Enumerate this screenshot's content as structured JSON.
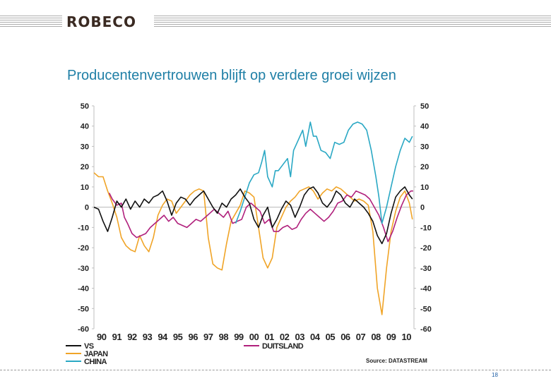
{
  "header": {
    "logo_text": "ROBECO"
  },
  "slide": {
    "title": "Producentenvertrouwen blijft op verdere groei wijzen",
    "page_number": "18"
  },
  "colors": {
    "vs": "#111111",
    "japan": "#f0a427",
    "china": "#2aa8c4",
    "duitsland": "#b0207c",
    "title": "#1f7fa6"
  },
  "chart_data": {
    "type": "line",
    "title": "",
    "ylim": [
      -60,
      50
    ],
    "yticks": [
      "50",
      "40",
      "30",
      "20",
      "10",
      "0",
      "-10",
      "-20",
      "-30",
      "-40",
      "-50",
      "-60"
    ],
    "x_range": [
      1990,
      2011
    ],
    "xtick_labels": [
      "90",
      "91",
      "92",
      "93",
      "94",
      "95",
      "96",
      "97",
      "98",
      "99",
      "00",
      "01",
      "02",
      "03",
      "04",
      "05",
      "06",
      "07",
      "08",
      "09",
      "10"
    ],
    "source": "Source: DATASTREAM",
    "legend": [
      "VS",
      "JAPAN",
      "CHINA",
      "DUITSLAND"
    ],
    "series": [
      {
        "name": "VS",
        "key": "vs",
        "x": [
          1990.0,
          1990.3,
          1990.6,
          1990.9,
          1991.2,
          1991.5,
          1991.8,
          1992.1,
          1992.4,
          1992.7,
          1993.0,
          1993.3,
          1993.6,
          1993.9,
          1994.2,
          1994.5,
          1994.8,
          1995.1,
          1995.4,
          1995.7,
          1996.0,
          1996.3,
          1996.6,
          1996.9,
          1997.2,
          1997.5,
          1997.8,
          1998.1,
          1998.4,
          1998.7,
          1999.0,
          1999.3,
          1999.6,
          1999.9,
          2000.2,
          2000.5,
          2000.8,
          2001.1,
          2001.4,
          2001.7,
          2002.0,
          2002.3,
          2002.6,
          2002.9,
          2003.2,
          2003.5,
          2003.8,
          2004.1,
          2004.4,
          2004.7,
          2005.0,
          2005.3,
          2005.6,
          2005.9,
          2006.2,
          2006.5,
          2006.8,
          2007.1,
          2007.4,
          2007.7,
          2008.0,
          2008.3,
          2008.6,
          2008.9,
          2009.2,
          2009.5,
          2009.8,
          2010.1,
          2010.4,
          2010.7,
          2010.9
        ],
        "values": [
          0,
          -1,
          -7,
          -12,
          -5,
          3,
          0,
          4,
          -1,
          3,
          0,
          4,
          2,
          5,
          6,
          8,
          3,
          -4,
          2,
          5,
          4,
          1,
          4,
          6,
          8,
          4,
          0,
          -3,
          2,
          0,
          4,
          6,
          9,
          5,
          2,
          -6,
          -10,
          -4,
          0,
          -10,
          -6,
          -1,
          3,
          1,
          -5,
          0,
          6,
          9,
          10,
          7,
          2,
          0,
          3,
          8,
          6,
          2,
          0,
          4,
          2,
          0,
          -3,
          -7,
          -14,
          -18,
          -13,
          -3,
          5,
          8,
          10,
          6,
          4
        ]
      },
      {
        "name": "JAPAN",
        "key": "japan",
        "x": [
          1990.0,
          1990.3,
          1990.6,
          1990.9,
          1991.2,
          1991.5,
          1991.8,
          1992.1,
          1992.4,
          1992.7,
          1993.0,
          1993.3,
          1993.6,
          1993.9,
          1994.2,
          1994.5,
          1994.8,
          1995.1,
          1995.4,
          1995.7,
          1996.0,
          1996.3,
          1996.6,
          1996.9,
          1997.2,
          1997.5,
          1997.8,
          1998.1,
          1998.4,
          1998.7,
          1999.0,
          1999.3,
          1999.6,
          1999.9,
          2000.2,
          2000.5,
          2000.8,
          2001.1,
          2001.4,
          2001.7,
          2002.0,
          2002.3,
          2002.6,
          2002.9,
          2003.2,
          2003.5,
          2003.8,
          2004.1,
          2004.4,
          2004.7,
          2005.0,
          2005.3,
          2005.6,
          2005.9,
          2006.2,
          2006.5,
          2006.8,
          2007.1,
          2007.4,
          2007.7,
          2008.0,
          2008.3,
          2008.6,
          2008.9,
          2009.2,
          2009.5,
          2009.8,
          2010.1,
          2010.4,
          2010.7,
          2010.9
        ],
        "values": [
          17,
          15,
          15,
          8,
          2,
          -5,
          -15,
          -19,
          -21,
          -22,
          -14,
          -19,
          -22,
          -15,
          -4,
          1,
          4,
          3,
          -3,
          0,
          3,
          6,
          8,
          9,
          8,
          -15,
          -28,
          -30,
          -31,
          -18,
          -7,
          -3,
          1,
          8,
          7,
          5,
          -10,
          -25,
          -30,
          -25,
          -10,
          -5,
          0,
          3,
          5,
          8,
          9,
          10,
          8,
          4,
          7,
          9,
          8,
          10,
          9,
          7,
          5,
          3,
          4,
          3,
          1,
          -12,
          -40,
          -53,
          -30,
          -12,
          -2,
          5,
          8,
          2,
          -6
        ]
      },
      {
        "name": "CHINA",
        "key": "china",
        "x": [
          1999.3,
          1999.6,
          1999.9,
          2000.2,
          2000.5,
          2000.8,
          2001.0,
          2001.2,
          2001.4,
          2001.7,
          2001.9,
          2002.1,
          2002.4,
          2002.7,
          2002.9,
          2003.1,
          2003.4,
          2003.7,
          2003.9,
          2004.2,
          2004.4,
          2004.6,
          2004.9,
          2005.2,
          2005.5,
          2005.8,
          2006.1,
          2006.4,
          2006.7,
          2007.0,
          2007.3,
          2007.6,
          2007.9,
          2008.2,
          2008.5,
          2008.7,
          2008.9,
          2009.2,
          2009.5,
          2009.8,
          2010.1,
          2010.4,
          2010.7,
          2010.9
        ],
        "values": [
          -8,
          -2,
          5,
          12,
          16,
          17,
          22,
          28,
          15,
          10,
          18,
          18,
          21,
          24,
          15,
          28,
          33,
          38,
          30,
          42,
          35,
          35,
          28,
          27,
          24,
          32,
          31,
          32,
          38,
          41,
          42,
          41,
          38,
          28,
          15,
          5,
          -8,
          0,
          10,
          20,
          28,
          34,
          32,
          35
        ]
      },
      {
        "name": "DUITSLAND",
        "key": "duitsland",
        "x": [
          1991.0,
          1991.2,
          1991.5,
          1991.8,
          1992.0,
          1992.2,
          1992.5,
          1992.8,
          1993.1,
          1993.4,
          1993.7,
          1994.0,
          1994.3,
          1994.6,
          1994.9,
          1995.2,
          1995.5,
          1995.8,
          1996.1,
          1996.4,
          1996.7,
          1997.0,
          1997.3,
          1997.6,
          1997.9,
          1998.2,
          1998.5,
          1998.8,
          1999.1,
          1999.4,
          1999.7,
          2000.0,
          2000.3,
          2000.6,
          2000.9,
          2001.2,
          2001.5,
          2001.8,
          2002.1,
          2002.4,
          2002.7,
          2003.0,
          2003.3,
          2003.6,
          2003.9,
          2004.2,
          2004.5,
          2004.8,
          2005.1,
          2005.4,
          2005.7,
          2006.0,
          2006.3,
          2006.6,
          2006.9,
          2007.2,
          2007.5,
          2007.8,
          2008.1,
          2008.4,
          2008.7,
          2009.0,
          2009.3,
          2009.6,
          2009.9,
          2010.2,
          2010.5,
          2010.8,
          2010.95
        ],
        "values": [
          7,
          4,
          1,
          2,
          -5,
          -8,
          -13,
          -15,
          -14,
          -13,
          -10,
          -8,
          -6,
          -4,
          -7,
          -5,
          -8,
          -9,
          -10,
          -8,
          -6,
          -7,
          -5,
          -3,
          -1,
          -3,
          -5,
          -2,
          -8,
          -7,
          -6,
          0,
          2,
          0,
          -2,
          -8,
          -6,
          -12,
          -12,
          -10,
          -9,
          -11,
          -10,
          -6,
          -3,
          -1,
          -3,
          -5,
          -7,
          -5,
          -2,
          2,
          3,
          6,
          5,
          8,
          7,
          6,
          4,
          0,
          -4,
          -10,
          -17,
          -12,
          -5,
          1,
          6,
          8,
          8
        ]
      }
    ]
  }
}
